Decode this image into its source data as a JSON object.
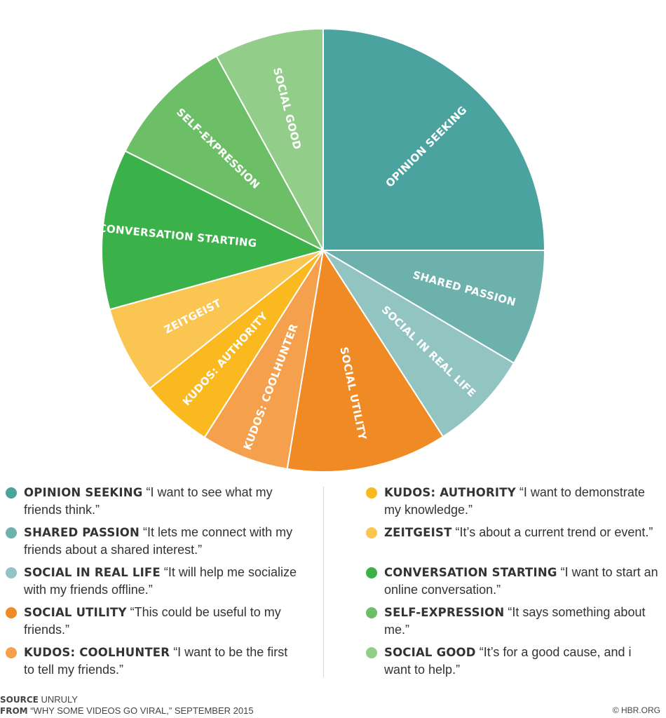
{
  "chart_data": {
    "type": "pie",
    "start": "12 o'clock",
    "direction": "clockwise",
    "slices": [
      {
        "label": "OPINION SEEKING",
        "value": 25.0,
        "color": "#4ba3a0"
      },
      {
        "label": "SHARED PASSION",
        "value": 8.5,
        "color": "#6db1ad"
      },
      {
        "label": "SOCIAL IN REAL LIFE",
        "value": 7.4,
        "color": "#92c5c1"
      },
      {
        "label": "SOCIAL UTILITY",
        "value": 11.7,
        "color": "#f08a24"
      },
      {
        "label": "KUDOS: COOLHUNTER",
        "value": 6.4,
        "color": "#f5a04d"
      },
      {
        "label": "KUDOS: AUTHORITY",
        "value": 5.3,
        "color": "#f9b91f"
      },
      {
        "label": "ZEITGEIST",
        "value": 6.4,
        "color": "#fbc552"
      },
      {
        "label": "CONVERSATION STARTING",
        "value": 11.7,
        "color": "#3bb14a"
      },
      {
        "label": "SELF-EXPRESSION",
        "value": 9.6,
        "color": "#6cbf67"
      },
      {
        "label": "SOCIAL GOOD",
        "value": 8.0,
        "color": "#93cd8a"
      }
    ]
  },
  "legend": {
    "left": [
      {
        "name": "OPINION SEEKING",
        "quote": "“I want to see what my friends think.”",
        "color": "#4ba3a0"
      },
      {
        "name": "SHARED PASSION",
        "quote": "“It lets me connect with my friends about a shared interest.”",
        "color": "#6db1ad"
      },
      {
        "name": "SOCIAL IN REAL LIFE",
        "quote": "“It will help me socialize with my friends offline.”",
        "color": "#92c5c1"
      },
      {
        "name": "SOCIAL UTILITY",
        "quote": "“This could be useful to my friends.”",
        "color": "#f08a24"
      },
      {
        "name": "KUDOS: COOLHUNTER",
        "quote": "“I want to be the first to tell my friends.”",
        "color": "#f5a04d"
      }
    ],
    "right": [
      {
        "name": "KUDOS: AUTHORITY",
        "quote": "“I want to demonstrate my knowledge.”",
        "color": "#f9b91f"
      },
      {
        "name": "ZEITGEIST",
        "quote": "“It’s about a current trend or event.”",
        "color": "#fbc552"
      },
      {
        "name": "CONVERSATION STARTING",
        "quote": "“I want to start an online conversation.”",
        "color": "#3bb14a"
      },
      {
        "name": "SELF-EXPRESSION",
        "quote": "“It says something about me.”",
        "color": "#6cbf67"
      },
      {
        "name": "SOCIAL GOOD",
        "quote": "“It’s for a good cause, and i want to help.”",
        "color": "#93cd8a"
      }
    ]
  },
  "footer": {
    "source_label": "SOURCE",
    "source_value": "UNRULY",
    "from_label": "FROM",
    "from_value": "“WHY SOME VIDEOS GO VIRAL,” SEPTEMBER 2015",
    "credit": "© HBR.ORG"
  }
}
